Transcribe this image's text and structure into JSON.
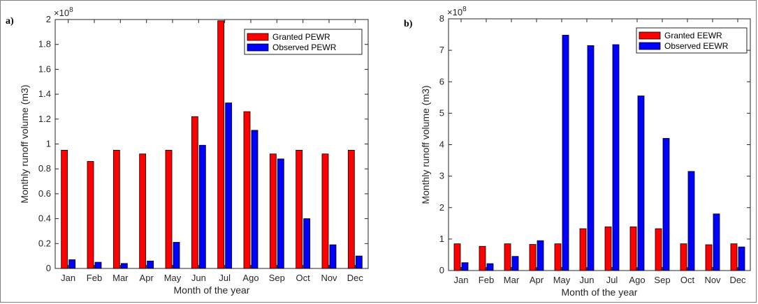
{
  "chart_data": [
    {
      "type": "bar",
      "panel_label": "a)",
      "categories": [
        "Jan",
        "Feb",
        "Mar",
        "Apr",
        "May",
        "Jun",
        "Jul",
        "Ago",
        "Sep",
        "Oct",
        "Nov",
        "Dec"
      ],
      "series": [
        {
          "name": "Granted PEWR",
          "color": "#ff0000",
          "values": [
            0.95,
            0.86,
            0.95,
            0.92,
            0.95,
            1.22,
            1.99,
            1.26,
            0.92,
            0.95,
            0.92,
            0.95
          ]
        },
        {
          "name": "Observed PEWR",
          "color": "#0000ff",
          "values": [
            0.07,
            0.05,
            0.04,
            0.06,
            0.21,
            0.99,
            1.33,
            1.11,
            0.88,
            0.4,
            0.19,
            0.1
          ]
        }
      ],
      "xlabel": "Month of the year",
      "ylabel": "Monthly runoff volume (m3)",
      "ylim": [
        0,
        2
      ],
      "yticks": [
        0,
        0.2,
        0.4,
        0.6,
        0.8,
        1,
        1.2,
        1.4,
        1.6,
        1.8,
        2
      ],
      "ytick_labels": [
        "0",
        "0.2",
        "0.4",
        "0.6",
        "0.8",
        "1",
        "1.2",
        "1.4",
        "1.6",
        "1.8",
        "2"
      ],
      "exponent": "×10",
      "exponent_power": "8",
      "legend": "top-right",
      "grid": false
    },
    {
      "type": "bar",
      "panel_label": "b)",
      "categories": [
        "Jan",
        "Feb",
        "Mar",
        "Apr",
        "May",
        "Jun",
        "Jul",
        "Ago",
        "Sep",
        "Oct",
        "Nov",
        "Dec"
      ],
      "series": [
        {
          "name": "Granted EEWR",
          "color": "#ff0000",
          "values": [
            0.85,
            0.77,
            0.85,
            0.83,
            0.85,
            1.33,
            1.39,
            1.39,
            1.33,
            0.85,
            0.82,
            0.85
          ]
        },
        {
          "name": "Observed EEWR",
          "color": "#0000ff",
          "values": [
            0.25,
            0.22,
            0.45,
            0.95,
            7.48,
            7.15,
            7.18,
            5.55,
            4.2,
            3.15,
            1.8,
            0.75
          ]
        }
      ],
      "xlabel": "Month of the year",
      "ylabel": "Monthly runoff volume (m3)",
      "ylim": [
        0,
        8
      ],
      "yticks": [
        0,
        1,
        2,
        3,
        4,
        5,
        6,
        7,
        8
      ],
      "ytick_labels": [
        "0",
        "1",
        "2",
        "3",
        "4",
        "5",
        "6",
        "7",
        "8"
      ],
      "exponent": "×10",
      "exponent_power": "8",
      "legend": "top-left",
      "grid": false
    }
  ]
}
